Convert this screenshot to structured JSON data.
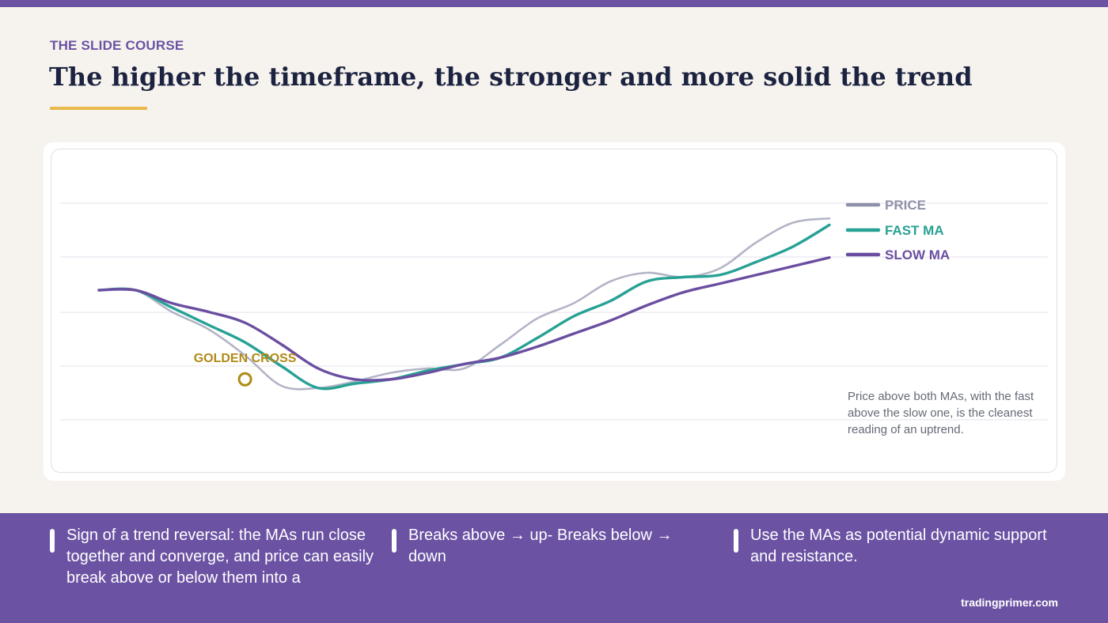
{
  "header": {
    "eyebrow": "THE SLIDE COURSE",
    "title": "The higher the timeframe, the stronger and more solid the trend"
  },
  "chart_data": {
    "type": "line",
    "title": "",
    "xlabel": "",
    "ylabel": "",
    "ylim": [
      0,
      100
    ],
    "grid": true,
    "legend_position": "right",
    "x": [
      0,
      5,
      10,
      15,
      20,
      25,
      30,
      35,
      40,
      45,
      50,
      55,
      60,
      65,
      70,
      75,
      80,
      85,
      90,
      95,
      100
    ],
    "series": [
      {
        "name": "PRICE",
        "color": "#9a9cb3",
        "values": [
          60,
          60,
          50,
          42,
          30,
          16,
          15,
          18,
          22,
          24,
          24,
          35,
          47,
          54,
          64,
          68,
          66,
          70,
          82,
          91,
          93
        ]
      },
      {
        "name": "FAST MA",
        "color": "#28a195",
        "values": [
          60,
          60,
          52,
          44,
          36,
          25,
          15,
          17,
          19,
          23,
          26,
          29,
          38,
          48,
          55,
          64,
          66,
          67,
          73,
          80,
          90
        ]
      },
      {
        "name": "SLOW MA",
        "color": "#6b4ea0",
        "values": [
          60,
          60,
          54,
          50,
          45,
          35,
          24,
          19,
          19,
          22,
          26,
          29,
          34,
          40,
          46,
          53,
          59,
          63,
          67,
          71,
          75
        ]
      }
    ],
    "annotations": [
      {
        "label": "GOLDEN CROSS",
        "x": 20,
        "y": 19,
        "color": "#b08a16"
      }
    ],
    "note": "Price above both MAs, with the fast above the slow one, is the cleanest reading of an uptrend."
  },
  "footer": {
    "bullets": [
      "Sign of a trend reversal: the MAs run close together and converge, and price can easily break above or below them into a",
      "Breaks above → up- Breaks below → down",
      "Use the MAs as potential dynamic support and resistance."
    ],
    "site": "tradingprimer.com"
  }
}
